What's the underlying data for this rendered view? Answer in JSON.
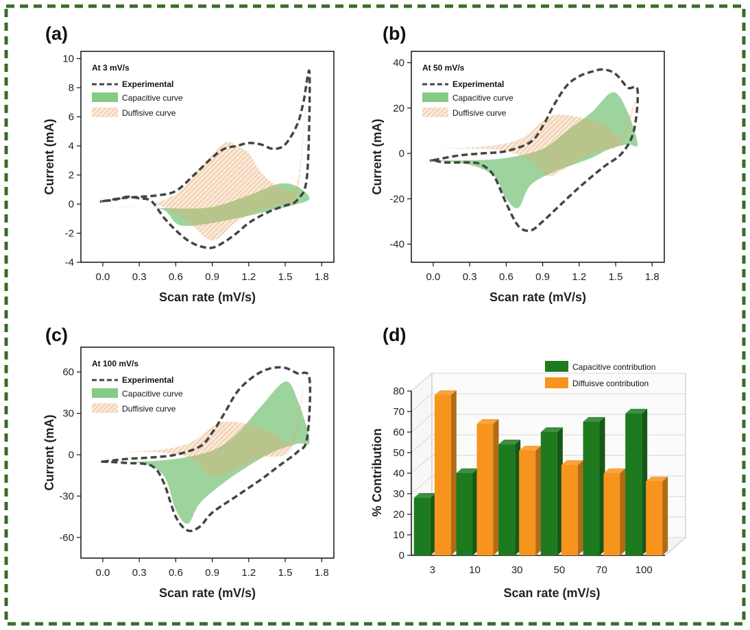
{
  "figure": {
    "border_color": "#3a6b2a",
    "panel_labels": [
      "(a)",
      "(b)",
      "(c)",
      "(d)"
    ]
  },
  "colors": {
    "experimental": "#444444",
    "capacitive": "#5cb85c",
    "diffusive": "#e8a86a",
    "bar_capacitive": "#1e7a1e",
    "bar_diffusive": "#f7941d"
  },
  "chart_data": [
    {
      "type": "area",
      "panel": "(a)",
      "annotation": "At 3 mV/s",
      "xlabel": "Scan rate (mV/s)",
      "ylabel": "Current (mA)",
      "xlim": [
        -0.18,
        1.9
      ],
      "ylim": [
        -4,
        10.5
      ],
      "xticks": [
        "0.0",
        "0.3",
        "0.6",
        "0.9",
        "1.2",
        "1.5",
        "1.8"
      ],
      "yticks": [
        "-4",
        "-2",
        "0",
        "2",
        "4",
        "6",
        "8",
        "10"
      ],
      "legend": [
        "Experimental",
        "Capacitive curve",
        "Duffisive curve"
      ],
      "series": [
        {
          "name": "Experimental",
          "x": [
            0.0,
            0.15,
            0.3,
            0.45,
            0.6,
            0.75,
            0.9,
            1.0,
            1.1,
            1.2,
            1.3,
            1.4,
            1.5,
            1.6,
            1.65,
            1.7,
            1.68,
            1.6,
            1.5,
            1.4,
            1.3,
            1.2,
            1.1,
            1.0,
            0.9,
            0.8,
            0.7,
            0.6,
            0.5,
            0.4,
            0.3,
            0.2,
            0.1,
            0.0
          ],
          "y": [
            0.2,
            0.4,
            0.5,
            0.6,
            0.9,
            2.0,
            3.2,
            3.8,
            4.0,
            4.2,
            4.1,
            3.8,
            4.1,
            5.5,
            7.0,
            9.0,
            2.0,
            0.3,
            -0.1,
            -0.4,
            -0.8,
            -1.3,
            -2.0,
            -2.6,
            -3.0,
            -2.9,
            -2.5,
            -1.8,
            -0.9,
            0.2,
            0.4,
            0.5,
            0.3,
            0.2
          ]
        },
        {
          "name": "Capacitive curve",
          "x": [
            0.0,
            0.3,
            0.6,
            0.9,
            1.2,
            1.45,
            1.6,
            1.7,
            1.6,
            1.4,
            1.2,
            0.9,
            0.7,
            0.6,
            0.5,
            0.3,
            0.0
          ],
          "y": [
            -0.2,
            -0.2,
            -0.3,
            -0.2,
            0.6,
            1.4,
            1.2,
            0.4,
            0.0,
            -0.4,
            -0.8,
            -1.3,
            -1.5,
            -1.3,
            -0.4,
            -0.2,
            -0.2
          ]
        },
        {
          "name": "Duffisive curve",
          "x": [
            0.4,
            0.6,
            0.8,
            1.0,
            1.1,
            1.2,
            1.3,
            1.45,
            1.6,
            1.68,
            1.6,
            1.45,
            1.3,
            1.1,
            0.9,
            0.7,
            0.5,
            0.4
          ],
          "y": [
            0.0,
            0.7,
            2.5,
            4.2,
            4.0,
            3.5,
            2.2,
            1.2,
            1.5,
            8.5,
            0.8,
            0.0,
            -0.4,
            -1.2,
            -2.5,
            -1.2,
            -0.2,
            0.0
          ]
        }
      ]
    },
    {
      "type": "area",
      "panel": "(b)",
      "annotation": "At 50 mV/s",
      "xlabel": "Scan rate (mV/s)",
      "ylabel": "Current (mA)",
      "xlim": [
        -0.18,
        1.9
      ],
      "ylim": [
        -48,
        45
      ],
      "xticks": [
        "0.0",
        "0.3",
        "0.6",
        "0.9",
        "1.2",
        "1.5",
        "1.8"
      ],
      "yticks": [
        "-40",
        "-20",
        "0",
        "20",
        "40"
      ],
      "legend": [
        "Experimental",
        "Capacitive curve",
        "Duffisive curve"
      ],
      "series": [
        {
          "name": "Experimental",
          "x": [
            0.0,
            0.2,
            0.4,
            0.6,
            0.8,
            0.9,
            1.0,
            1.1,
            1.2,
            1.3,
            1.4,
            1.5,
            1.6,
            1.68,
            1.65,
            1.55,
            1.4,
            1.2,
            1.0,
            0.9,
            0.8,
            0.7,
            0.6,
            0.5,
            0.4,
            0.3,
            0.1,
            0.0
          ],
          "y": [
            -3,
            -1,
            0,
            1,
            5,
            12,
            22,
            30,
            34,
            36,
            37,
            35,
            29,
            28,
            10,
            0,
            -6,
            -15,
            -25,
            -30,
            -34,
            -32,
            -22,
            -10,
            -5,
            -4,
            -4,
            -3
          ]
        },
        {
          "name": "Capacitive curve",
          "x": [
            0.0,
            0.3,
            0.6,
            0.9,
            1.1,
            1.3,
            1.48,
            1.6,
            1.68,
            1.6,
            1.45,
            1.3,
            1.0,
            0.8,
            0.7,
            0.6,
            0.5,
            0.3,
            0.0
          ],
          "y": [
            -3,
            -3,
            -2,
            2,
            10,
            18,
            27,
            18,
            4,
            4,
            2,
            -2,
            -8,
            -14,
            -24,
            -20,
            -10,
            -5,
            -3
          ]
        },
        {
          "name": "Duffisive curve",
          "x": [
            0.0,
            0.4,
            0.7,
            0.9,
            1.0,
            1.2,
            1.4,
            1.55,
            1.68,
            1.55,
            1.3,
            1.1,
            0.95,
            0.8,
            0.6,
            0.4,
            0.0
          ],
          "y": [
            2,
            3,
            6,
            14,
            17,
            16,
            13,
            8,
            28,
            5,
            0,
            -6,
            -10,
            -3,
            1,
            2,
            2
          ]
        }
      ]
    },
    {
      "type": "area",
      "panel": "(c)",
      "annotation": "At 100 mV/s",
      "xlabel": "Scan rate (mV/s)",
      "ylabel": "Current (mA)",
      "xlim": [
        -0.18,
        1.9
      ],
      "ylim": [
        -75,
        78
      ],
      "xticks": [
        "0.0",
        "0.3",
        "0.6",
        "0.9",
        "1.2",
        "1.5",
        "1.8"
      ],
      "yticks": [
        "-60",
        "-30",
        "0",
        "30",
        "60"
      ],
      "legend": [
        "Experimental",
        "Capacitive curve",
        "Duffisive curve"
      ],
      "series": [
        {
          "name": "Experimental",
          "x": [
            0.0,
            0.2,
            0.4,
            0.6,
            0.8,
            0.9,
            1.0,
            1.1,
            1.2,
            1.3,
            1.4,
            1.5,
            1.6,
            1.7,
            1.68,
            1.6,
            1.45,
            1.3,
            1.1,
            0.9,
            0.8,
            0.7,
            0.6,
            0.5,
            0.4,
            0.2,
            0.0
          ],
          "y": [
            -5,
            -3,
            -2,
            0,
            6,
            16,
            30,
            45,
            54,
            60,
            63,
            63,
            59,
            55,
            12,
            2,
            -8,
            -18,
            -30,
            -42,
            -52,
            -55,
            -45,
            -20,
            -8,
            -6,
            -5
          ]
        },
        {
          "name": "Capacitive curve",
          "x": [
            0.0,
            0.3,
            0.6,
            0.9,
            1.1,
            1.3,
            1.5,
            1.6,
            1.7,
            1.6,
            1.4,
            1.2,
            1.0,
            0.8,
            0.7,
            0.6,
            0.5,
            0.3,
            0.0
          ],
          "y": [
            -5,
            -5,
            -3,
            3,
            15,
            35,
            53,
            40,
            10,
            8,
            2,
            -8,
            -20,
            -35,
            -50,
            -40,
            -15,
            -6,
            -5
          ]
        },
        {
          "name": "Duffisive curve",
          "x": [
            0.0,
            0.4,
            0.7,
            0.9,
            1.0,
            1.2,
            1.4,
            1.55,
            1.65,
            1.55,
            1.3,
            1.1,
            0.9,
            0.75,
            0.55,
            0.3,
            0.0
          ],
          "y": [
            2,
            3,
            8,
            20,
            24,
            22,
            16,
            10,
            50,
            4,
            -2,
            -10,
            -16,
            -4,
            1,
            2,
            2
          ]
        }
      ]
    },
    {
      "type": "bar",
      "panel": "(d)",
      "xlabel": "Scan rate (mV/s)",
      "ylabel": "% Contribution",
      "categories": [
        "3",
        "10",
        "30",
        "50",
        "70",
        "100"
      ],
      "ylim": [
        0,
        80
      ],
      "yticks": [
        "0",
        "10",
        "20",
        "30",
        "40",
        "50",
        "60",
        "70",
        "80"
      ],
      "legend_position": "top-right",
      "series": [
        {
          "name": "Capacitive contribution",
          "values": [
            28,
            40,
            54,
            60,
            65,
            69
          ]
        },
        {
          "name": "Diffuisve contribution",
          "values": [
            78,
            64,
            51,
            44,
            40,
            36
          ]
        }
      ]
    }
  ]
}
